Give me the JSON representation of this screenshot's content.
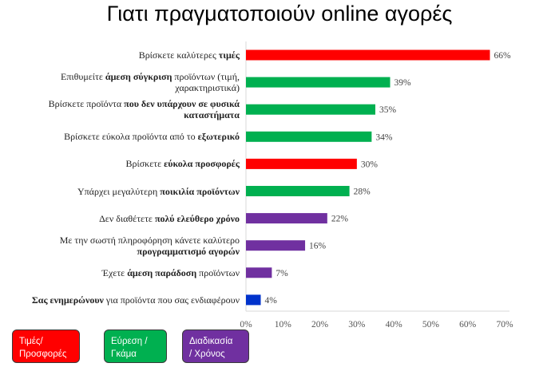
{
  "chart_data": {
    "type": "bar",
    "orientation": "horizontal",
    "title": "Γιατι πραγματοποιούν online αγορές",
    "categories": [
      [
        {
          "t": "Βρίσκετε καλύτερες "
        },
        {
          "t": "τιμές",
          "b": true
        }
      ],
      [
        {
          "t": "Επιθυμείτε "
        },
        {
          "t": "άμεση σύγκριση",
          "b": true
        },
        {
          "t": " προϊόντων (τιμή, χαρακτηριστικά)"
        }
      ],
      [
        {
          "t": "Βρίσκετε προϊόντα "
        },
        {
          "t": "που δεν υπάρχουν σε φυσικά καταστήματα",
          "b": true
        }
      ],
      [
        {
          "t": "Βρίσκετε εύκολα προϊόντα από το "
        },
        {
          "t": "εξωτερικό",
          "b": true
        }
      ],
      [
        {
          "t": "Βρίσκετε "
        },
        {
          "t": "εύκολα προσφορές",
          "b": true
        }
      ],
      [
        {
          "t": "Υπάρχει μεγαλύτερη "
        },
        {
          "t": "ποικιλία προϊόντων",
          "b": true
        }
      ],
      [
        {
          "t": "Δεν διαθέτετε "
        },
        {
          "t": "πολύ ελεύθερο χρόνο",
          "b": true
        }
      ],
      [
        {
          "t": "Με την σωστή πληροφόρηση  κάνετε καλύτερο "
        },
        {
          "t": "προγραμματισμό αγορών",
          "b": true
        }
      ],
      [
        {
          "t": "Έχετε "
        },
        {
          "t": "άμεση παράδοση",
          "b": true
        },
        {
          "t": " προϊόντων"
        }
      ],
      [
        {
          "t": "Σας ενημερώνουν",
          "b": true
        },
        {
          "t": " για προϊόντα που σας ενδιαφέρουν"
        }
      ]
    ],
    "values": [
      66,
      39,
      35,
      34,
      30,
      28,
      22,
      16,
      7,
      4
    ],
    "value_labels": [
      "66%",
      "39%",
      "35%",
      "34%",
      "30%",
      "28%",
      "22%",
      "16%",
      "7%",
      "4%"
    ],
    "colors": [
      "#ff0000",
      "#00b050",
      "#00b050",
      "#00b050",
      "#ff0000",
      "#00b050",
      "#7030a0",
      "#7030a0",
      "#7030a0",
      "#0033cc"
    ],
    "xlim": [
      0,
      70
    ],
    "xticks": [
      "0%",
      "10%",
      "20%",
      "30%",
      "40%",
      "50%",
      "60%",
      "70%"
    ],
    "grid": false
  },
  "legend": [
    {
      "label_lines": [
        "Τιμές/",
        "Προσφορές"
      ],
      "color": "#ff0000"
    },
    {
      "label_lines": [
        "Εύρεση /",
        "Γκάμα"
      ],
      "color": "#00b050"
    },
    {
      "label_lines": [
        "Διαδικασία",
        "/ Χρόνος"
      ],
      "color": "#7030a0"
    }
  ]
}
